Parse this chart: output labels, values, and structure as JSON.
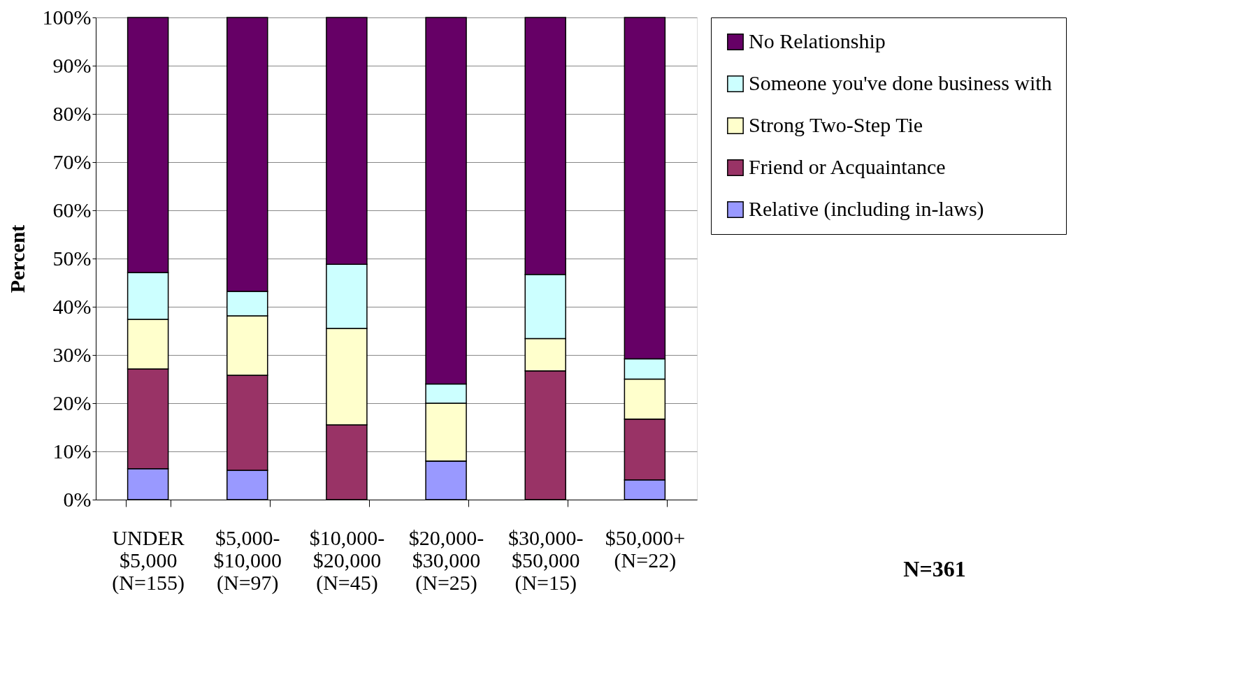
{
  "chart_data": {
    "type": "bar",
    "stacked": true,
    "ylabel": "Percent",
    "categories": [
      "UNDER\n$5,000\n(N=155)",
      "$5,000-\n$10,000\n(N=97)",
      "$10,000-\n$20,000\n(N=45)",
      "$20,000-\n$30,000\n(N=25)",
      "$30,000-\n$50,000\n(N=15)",
      "$50,000+\n(N=22)"
    ],
    "series": [
      {
        "name": "Relative (including in-laws)",
        "color": "#9999ff",
        "values": [
          6.4,
          6.1,
          0,
          8.0,
          0,
          4.1
        ]
      },
      {
        "name": "Friend or Acquaintance",
        "color": "#993366",
        "values": [
          20.7,
          19.7,
          15.5,
          0,
          26.7,
          12.6
        ]
      },
      {
        "name": "Strong Two-Step Tie",
        "color": "#ffffcc",
        "values": [
          10.3,
          12.3,
          20.0,
          12.0,
          6.7,
          8.3
        ]
      },
      {
        "name": "Someone you've done business with",
        "color": "#ccffff",
        "values": [
          9.7,
          5.1,
          13.3,
          4.0,
          13.3,
          4.2
        ]
      },
      {
        "name": "No Relationship",
        "color": "#660066",
        "values": [
          52.9,
          56.8,
          51.2,
          76.0,
          53.3,
          70.8
        ]
      }
    ],
    "ylim": [
      0,
      100
    ],
    "yticks": [
      {
        "value": 0,
        "label": "0%"
      },
      {
        "value": 10,
        "label": "10%"
      },
      {
        "value": 20,
        "label": "20%"
      },
      {
        "value": 30,
        "label": "30%"
      },
      {
        "value": 40,
        "label": "40%"
      },
      {
        "value": 50,
        "label": "50%"
      },
      {
        "value": 60,
        "label": "60%"
      },
      {
        "value": 70,
        "label": "70%"
      },
      {
        "value": 80,
        "label": "80%"
      },
      {
        "value": 90,
        "label": "90%"
      },
      {
        "value": 100,
        "label": "100%"
      }
    ],
    "grid": "y",
    "legend": "right",
    "annotations": [
      "N=361"
    ]
  }
}
